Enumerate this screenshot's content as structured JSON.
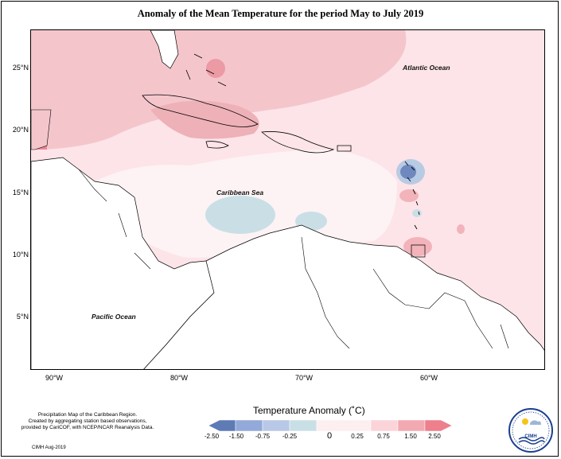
{
  "title": "Anomaly of the Mean Temperature for the period May to July 2019",
  "map": {
    "lat_labels": [
      "25°N",
      "20°N",
      "15°N",
      "10°N",
      "5°N"
    ],
    "lon_labels": [
      "90°W",
      "80°W",
      "70°W",
      "60°W"
    ],
    "ocean_labels": {
      "atlantic": "Atlantic Ocean",
      "caribbean": "Caribbean Sea",
      "pacific": "Pacific Ocean"
    }
  },
  "legend": {
    "title": "Temperature Anomaly (˚C)",
    "ticks": [
      "-2.50",
      "-1.50",
      "-0.75",
      "-0.25",
      "0",
      "0.25",
      "0.75",
      "1.50",
      "2.50"
    ],
    "colors": [
      "#5e7bb6",
      "#93a9d9",
      "#b8c8e6",
      "#c9dfe6",
      "#fdeef0",
      "#fbd4d9",
      "#f2a9b1",
      "#ee7f8c"
    ]
  },
  "note": {
    "line1": "Precipitation Map of the Caribbean Region.",
    "line2": "Created by aggregating station based observations,",
    "line3": "provided by CariCOF, with NCEP/NCAR Reanalysis Data.",
    "date": "CIMH Aug-2019"
  },
  "logo": {
    "text": "CIMH"
  }
}
